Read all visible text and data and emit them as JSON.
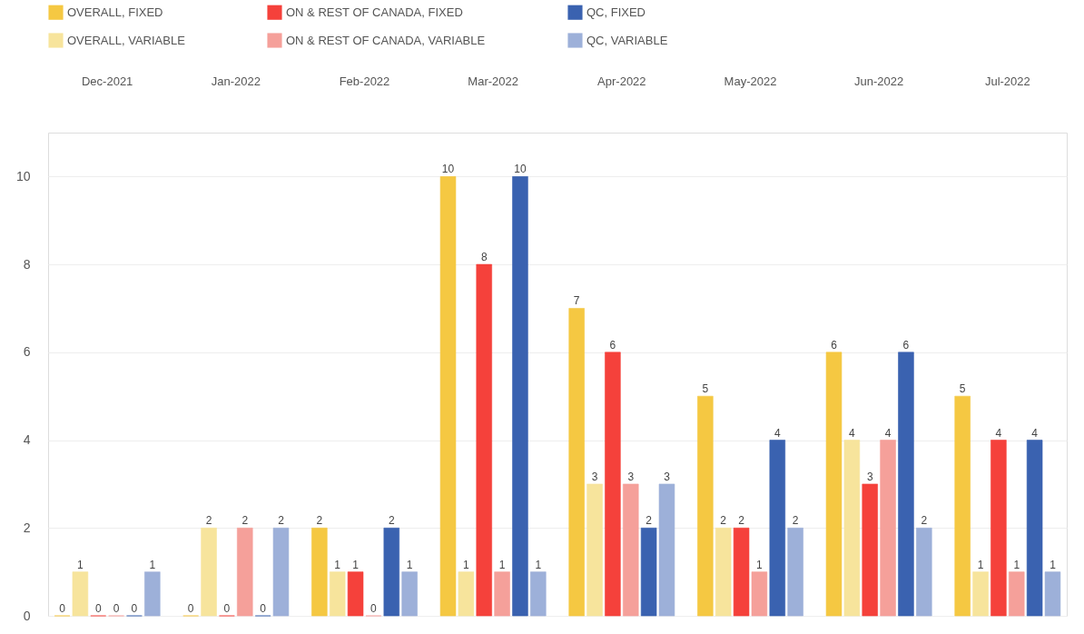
{
  "chart_data": {
    "type": "bar",
    "categories": [
      "Dec-2021",
      "Jan-2022",
      "Feb-2022",
      "Mar-2022",
      "Apr-2022",
      "May-2022",
      "Jun-2022",
      "Jul-2022"
    ],
    "series": [
      {
        "name": "OVERALL, FIXED",
        "color": "#f5c842",
        "values": [
          0,
          0,
          2,
          10,
          7,
          5,
          6,
          5
        ]
      },
      {
        "name": "OVERALL, VARIABLE",
        "color": "#f7e49c",
        "values": [
          1,
          2,
          1,
          1,
          3,
          2,
          4,
          1
        ]
      },
      {
        "name": "ON & REST OF CANADA, FIXED",
        "color": "#f5413b",
        "values": [
          0,
          0,
          1,
          8,
          6,
          2,
          3,
          4
        ]
      },
      {
        "name": "ON & REST OF CANADA, VARIABLE",
        "color": "#f5a09a",
        "values": [
          0,
          2,
          0,
          1,
          3,
          1,
          4,
          1
        ]
      },
      {
        "name": "QC, FIXED",
        "color": "#3a62b0",
        "values": [
          0,
          0,
          2,
          10,
          2,
          4,
          6,
          4
        ]
      },
      {
        "name": "QC, VARIABLE",
        "color": "#9db0d9",
        "values": [
          1,
          2,
          1,
          1,
          3,
          2,
          2,
          1
        ]
      }
    ],
    "ylim": [
      0,
      11
    ],
    "yticks": [
      0,
      2,
      4,
      6,
      8,
      10
    ],
    "grid": "y",
    "legend": "top left",
    "data_labels": true
  }
}
